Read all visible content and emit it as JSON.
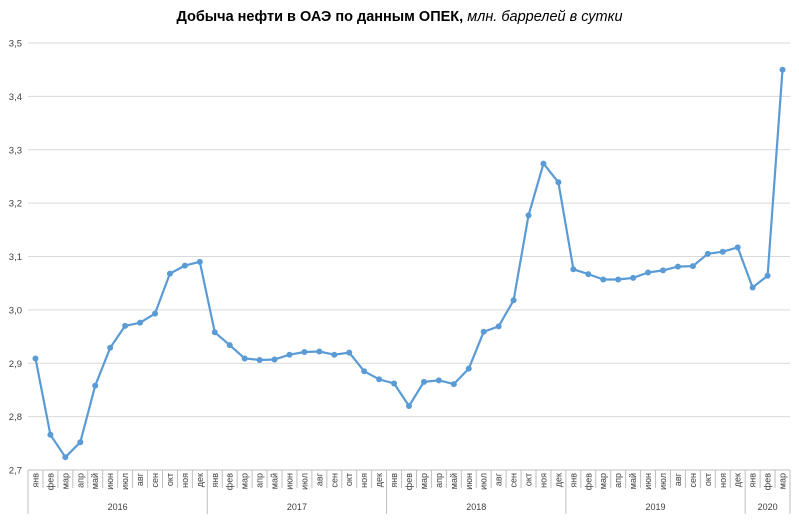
{
  "chart_data": {
    "type": "line",
    "title": "Добыча  нефти в ОАЭ по данным  ОПЕК,",
    "subtitle": " млн. баррелей в сутки",
    "ylim": [
      2.7,
      3.5
    ],
    "yticks": [
      "2,7",
      "2,8",
      "2,9",
      "3,0",
      "3,1",
      "3,2",
      "3,3",
      "3,4",
      "3,5"
    ],
    "grid": true,
    "legend": "none",
    "colors": {
      "line": "#5b9bd5",
      "grid": "#d9d9d9",
      "axis": "#bfbfbf"
    },
    "x": [
      "янв",
      "фев",
      "мар",
      "апр",
      "май",
      "июн",
      "июл",
      "авг",
      "сен",
      "окт",
      "ноя",
      "дек",
      "янв",
      "фев",
      "мар",
      "апр",
      "май",
      "июн",
      "июл",
      "авг",
      "сен",
      "окт",
      "ноя",
      "дек",
      "янв",
      "фев",
      "мар",
      "апр",
      "май",
      "июн",
      "июл",
      "авг",
      "сен",
      "окт",
      "ноя",
      "дек",
      "янв",
      "фев",
      "мар",
      "апр",
      "май",
      "июн",
      "июл",
      "авг",
      "сен",
      "окт",
      "ноя",
      "дек",
      "янв",
      "фев",
      "мар"
    ],
    "years": [
      {
        "label": "2016",
        "months": 12
      },
      {
        "label": "2017",
        "months": 12
      },
      {
        "label": "2018",
        "months": 12
      },
      {
        "label": "2019",
        "months": 12
      },
      {
        "label": "2020",
        "months": 3
      }
    ],
    "series": [
      {
        "values": [
          2.909,
          2.766,
          2.724,
          2.752,
          2.858,
          2.929,
          2.97,
          2.976,
          2.993,
          3.068,
          3.083,
          3.09,
          2.958,
          2.934,
          2.909,
          2.906,
          2.907,
          2.916,
          2.921,
          2.922,
          2.916,
          2.92,
          2.885,
          2.87,
          2.862,
          2.82,
          2.865,
          2.868,
          2.861,
          2.89,
          2.959,
          2.969,
          3.018,
          3.177,
          3.274,
          3.239,
          3.076,
          3.067,
          3.057,
          3.057,
          3.06,
          3.07,
          3.074,
          3.081,
          3.082,
          3.105,
          3.109,
          3.117,
          3.042,
          3.064,
          3.45
        ]
      }
    ]
  }
}
